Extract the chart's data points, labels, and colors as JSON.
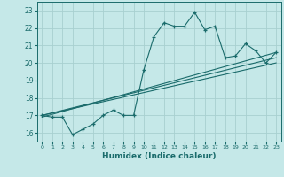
{
  "xlabel": "Humidex (Indice chaleur)",
  "ylabel": "",
  "bg_color": "#c5e8e8",
  "grid_color": "#a8d0d0",
  "line_color": "#1a6b6b",
  "xlim": [
    -0.5,
    23.5
  ],
  "ylim": [
    15.5,
    23.5
  ],
  "yticks": [
    16,
    17,
    18,
    19,
    20,
    21,
    22,
    23
  ],
  "xticks": [
    0,
    1,
    2,
    3,
    4,
    5,
    6,
    7,
    8,
    9,
    10,
    11,
    12,
    13,
    14,
    15,
    16,
    17,
    18,
    19,
    20,
    21,
    22,
    23
  ],
  "series1_x": [
    0,
    1,
    2,
    3,
    4,
    5,
    6,
    7,
    8,
    9,
    10,
    11,
    12,
    13,
    14,
    15,
    16,
    17,
    18,
    19,
    20,
    21,
    22,
    23
  ],
  "series1_y": [
    17.0,
    16.9,
    16.9,
    15.9,
    16.2,
    16.5,
    17.0,
    17.3,
    17.0,
    17.0,
    19.6,
    21.5,
    22.3,
    22.1,
    22.1,
    22.9,
    21.9,
    22.1,
    20.3,
    20.4,
    21.1,
    20.7,
    20.0,
    20.6
  ],
  "series2_x": [
    0,
    23
  ],
  "series2_y": [
    17.0,
    20.3
  ],
  "series3_x": [
    0,
    23
  ],
  "series3_y": [
    17.0,
    20.0
  ],
  "series4_x": [
    0,
    23
  ],
  "series4_y": [
    16.9,
    20.6
  ]
}
